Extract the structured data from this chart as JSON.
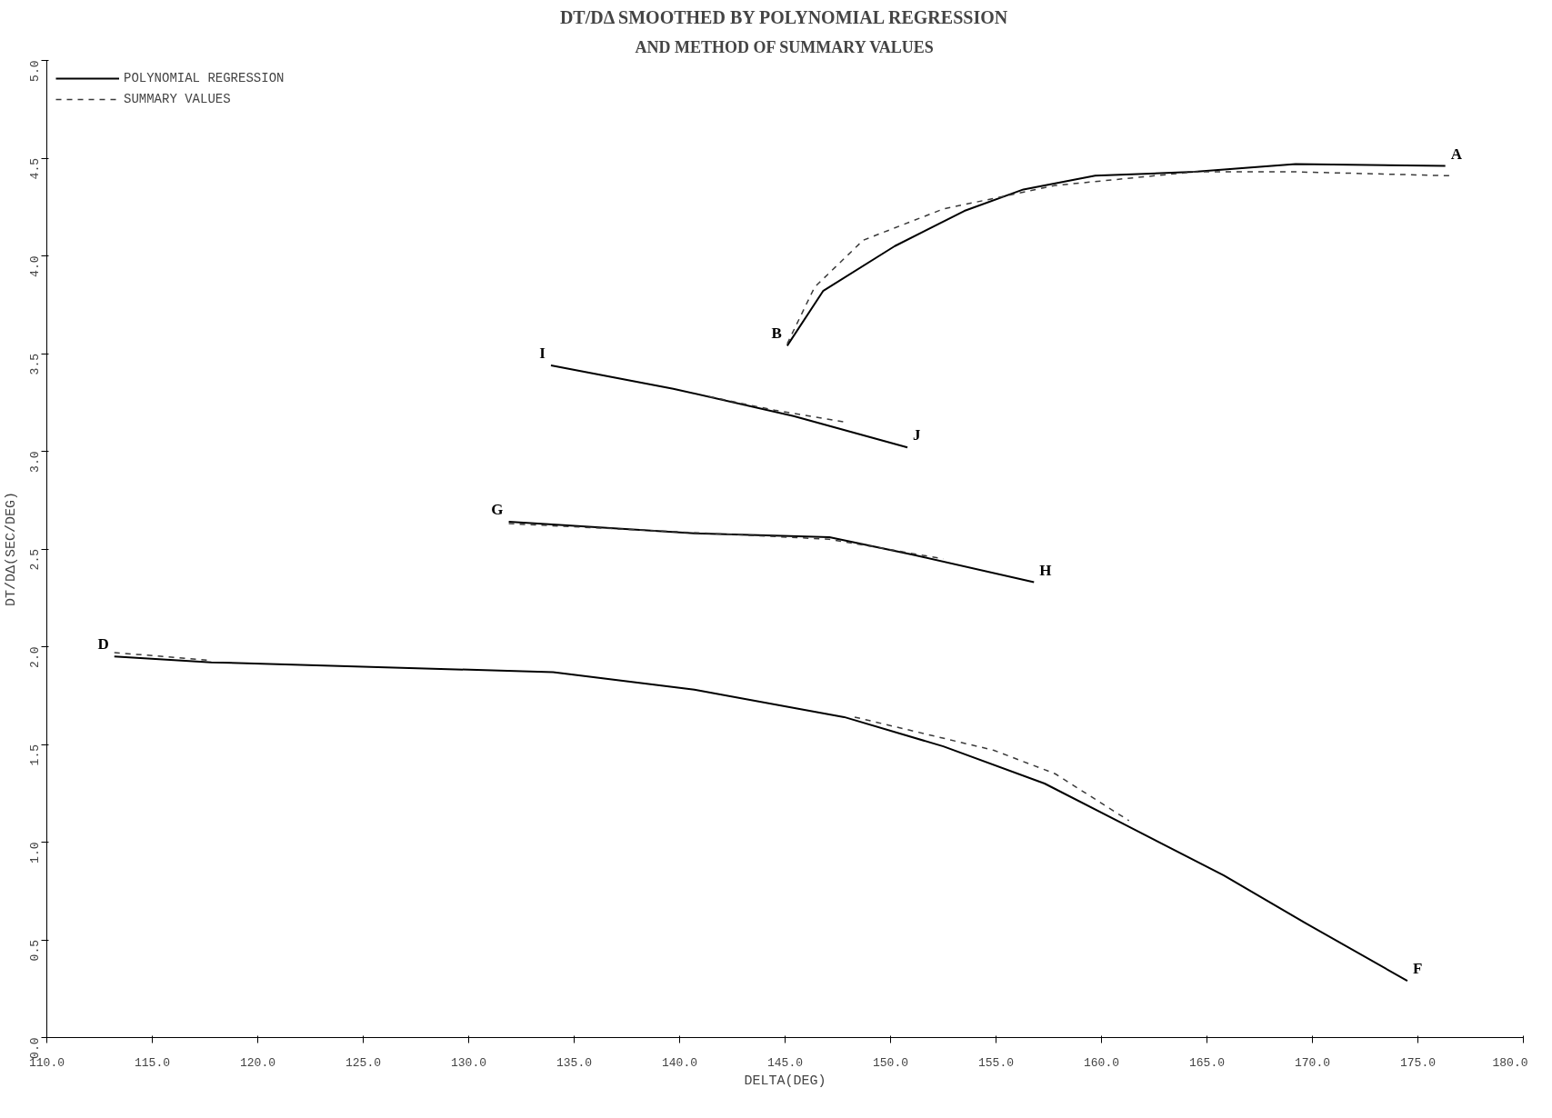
{
  "chart_data": {
    "type": "line",
    "title": "DT/DΔ SMOOTHED BY POLYNOMIAL REGRESSION",
    "subtitle": "AND METHOD OF SUMMARY VALUES",
    "xlabel": "DELTA(DEG)",
    "ylabel": "DT/DΔ(SEC/DEG)",
    "xlim": [
      110,
      180
    ],
    "ylim": [
      0,
      5
    ],
    "xticks": [
      {
        "value": 110,
        "label": "110.0"
      },
      {
        "value": 115,
        "label": "115.0"
      },
      {
        "value": 120,
        "label": "120.0"
      },
      {
        "value": 125,
        "label": "125.0"
      },
      {
        "value": 130,
        "label": "130.0"
      },
      {
        "value": 135,
        "label": "135.0"
      },
      {
        "value": 140,
        "label": "140.0"
      },
      {
        "value": 145,
        "label": "145.0"
      },
      {
        "value": 150,
        "label": "150.0"
      },
      {
        "value": 155,
        "label": "155.0"
      },
      {
        "value": 160,
        "label": "160.0"
      },
      {
        "value": 165,
        "label": "165.0"
      },
      {
        "value": 170,
        "label": "170.0"
      },
      {
        "value": 175,
        "label": "175.0"
      },
      {
        "value": 180,
        "label": "180.0"
      }
    ],
    "yticks": [
      {
        "value": 0,
        "label": "0.0"
      },
      {
        "value": 0.5,
        "label": "0.5"
      },
      {
        "value": 1,
        "label": "1.0"
      },
      {
        "value": 1.5,
        "label": "1.5"
      },
      {
        "value": 2,
        "label": "2.0"
      },
      {
        "value": 2.5,
        "label": "2.5"
      },
      {
        "value": 3,
        "label": "3.0"
      },
      {
        "value": 3.5,
        "label": "3.5"
      },
      {
        "value": 4,
        "label": "4.0"
      },
      {
        "value": 4.5,
        "label": "4.5"
      },
      {
        "value": 5,
        "label": "5.0"
      }
    ],
    "grid": false,
    "legend": "top left",
    "marker": "none",
    "series": [
      {
        "name": "POLYNOMIAL REGRESSION",
        "color": "#000000",
        "line_style": "solid",
        "x": [
          145.1,
          146.8,
          150.2,
          153.5,
          156.3,
          159.7,
          164.4,
          169.2,
          176.3,
          null,
          133.9,
          139.7,
          145.4,
          150.8,
          null,
          131.9,
          140.7,
          147.1,
          151.1,
          156.8,
          null,
          113.2,
          117.8,
          134.0,
          140.7,
          147.8,
          152.5,
          157.3,
          161.1,
          165.8,
          169.6,
          174.5
        ],
        "values": [
          3.54,
          3.82,
          4.05,
          4.23,
          4.34,
          4.41,
          4.43,
          4.47,
          4.46,
          null,
          3.44,
          3.32,
          3.18,
          3.02,
          null,
          2.64,
          2.58,
          2.56,
          2.47,
          2.33,
          null,
          1.95,
          1.92,
          1.87,
          1.78,
          1.64,
          1.49,
          1.3,
          1.09,
          0.83,
          0.59,
          0.29
        ]
      },
      {
        "name": "SUMMARY VALUES",
        "color": "#3a3a3a",
        "line_style": "dashed",
        "x": [
          145.1,
          146.4,
          148.7,
          152.5,
          157.8,
          164.4,
          169.2,
          176.5,
          null,
          141.4,
          144.5,
          147.8,
          null,
          131.9,
          147.1,
          152.5,
          null,
          113.2,
          117.8,
          null,
          148.3,
          154.9,
          157.8,
          161.3
        ],
        "values": [
          3.55,
          3.84,
          4.08,
          4.24,
          4.36,
          4.43,
          4.43,
          4.41,
          null,
          3.28,
          3.21,
          3.15,
          null,
          2.63,
          2.55,
          2.45,
          null,
          1.97,
          1.93,
          null,
          1.64,
          1.47,
          1.35,
          1.11
        ]
      }
    ],
    "annotations": [
      {
        "text": "A",
        "x": 176.3,
        "y": 4.46
      },
      {
        "text": "B",
        "x": 145.1,
        "y": 3.54
      },
      {
        "text": "I",
        "x": 133.9,
        "y": 3.44
      },
      {
        "text": "J",
        "x": 150.8,
        "y": 3.02
      },
      {
        "text": "G",
        "x": 131.9,
        "y": 2.64
      },
      {
        "text": "H",
        "x": 156.8,
        "y": 2.33
      },
      {
        "text": "D",
        "x": 113.2,
        "y": 1.95
      },
      {
        "text": "F",
        "x": 174.5,
        "y": 0.29
      }
    ]
  }
}
